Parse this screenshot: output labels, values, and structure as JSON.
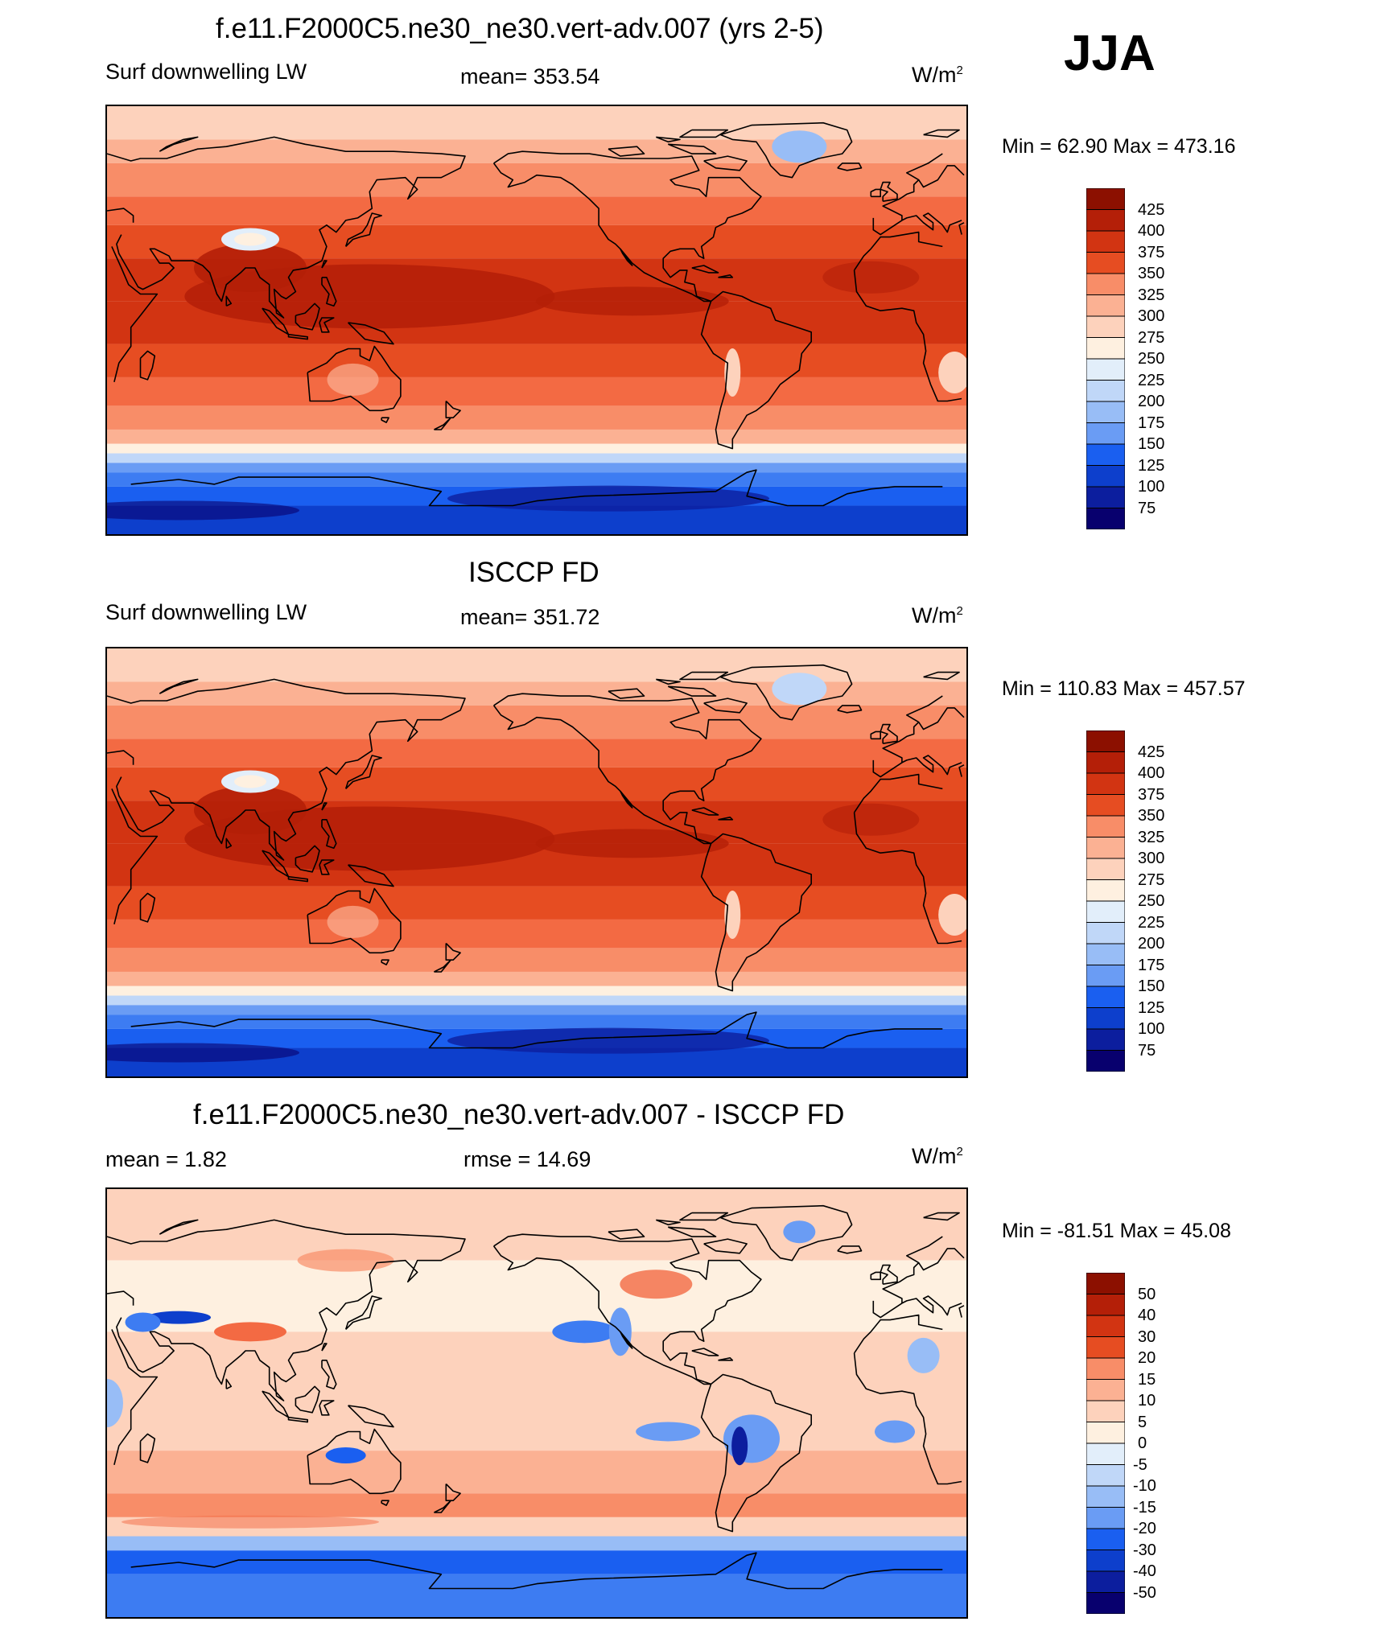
{
  "season": "JJA",
  "colors": {
    "sequential": [
      "#08006e",
      "#0c1e9e",
      "#0d3fcc",
      "#1a5ff0",
      "#3d7cf2",
      "#6a9cf4",
      "#98bdf6",
      "#c0d7f8",
      "#e2eefa",
      "#fef0e0",
      "#fdd2bc",
      "#fbb193",
      "#f88d68",
      "#f36a43",
      "#e64d22",
      "#d23412",
      "#b41f08",
      "#8c1000"
    ],
    "diverging": [
      "#08006e",
      "#0c1e9e",
      "#0d3fcc",
      "#1a5ff0",
      "#3d7cf2",
      "#6a9cf4",
      "#98bdf6",
      "#c0d7f8",
      "#e2eefa",
      "#fef0e0",
      "#fdd2bc",
      "#fbb193",
      "#f88d68",
      "#f36a43",
      "#e64d22",
      "#d23412",
      "#b41f08",
      "#8c1000"
    ]
  },
  "chart_data": [
    {
      "type": "heatmap",
      "title": "f.e11.F2000C5.ne30_ne30.vert-adv.007 (yrs 2-5)",
      "left_label": "Surf downwelling LW",
      "center_label": "mean= 353.54",
      "units": "W/m",
      "units_sup": "2",
      "minmax": "Min =  62.90 Max = 473.16",
      "min": 62.9,
      "max": 473.16,
      "mean": 353.54,
      "levels": [
        "425",
        "400",
        "375",
        "350",
        "325",
        "300",
        "275",
        "250",
        "225",
        "200",
        "175",
        "150",
        "125",
        "100",
        "75"
      ],
      "palette": "sequential"
    },
    {
      "type": "heatmap",
      "title": "ISCCP FD",
      "left_label": "Surf downwelling LW",
      "center_label": "mean= 351.72",
      "units": "W/m",
      "units_sup": "2",
      "minmax": "Min = 110.83 Max = 457.57",
      "min": 110.83,
      "max": 457.57,
      "mean": 351.72,
      "levels": [
        "425",
        "400",
        "375",
        "350",
        "325",
        "300",
        "275",
        "250",
        "225",
        "200",
        "175",
        "150",
        "125",
        "100",
        "75"
      ],
      "palette": "sequential"
    },
    {
      "type": "heatmap",
      "title": "f.e11.F2000C5.ne30_ne30.vert-adv.007 - ISCCP FD",
      "left_label": "mean =   1.82",
      "center_label": "rmse =  14.69",
      "units": "W/m",
      "units_sup": "2",
      "minmax": "Min = -81.51 Max =  45.08",
      "min": -81.51,
      "max": 45.08,
      "mean": 1.82,
      "rmse": 14.69,
      "levels": [
        "50",
        "40",
        "30",
        "20",
        "15",
        "10",
        "5",
        "0",
        "-5",
        "-10",
        "-15",
        "-20",
        "-30",
        "-40",
        "-50"
      ],
      "palette": "diverging"
    }
  ]
}
